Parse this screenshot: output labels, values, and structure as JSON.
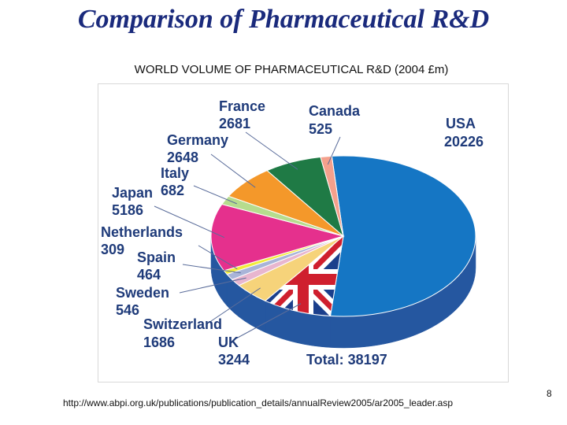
{
  "slide": {
    "title": "Comparison of Pharmaceutical R&D",
    "footer_url": "http://www.abpi.org.uk/publications/publication_details/annualReview2005/ar2005_leader.asp",
    "page_number": "8"
  },
  "chart_data": {
    "type": "pie",
    "title": "WORLD VOLUME OF PHARMACEUTICAL R&D (2004 £m)",
    "total_label": "Total: 38197",
    "total": 38197,
    "slices": [
      {
        "name": "USA",
        "value": 20226,
        "color": "#1576c4"
      },
      {
        "name": "UK",
        "value": 3244,
        "color": "#cf1f2e"
      },
      {
        "name": "Switzerland",
        "value": 1686,
        "color": "#f6d37a"
      },
      {
        "name": "Sweden",
        "value": 546,
        "color": "#e8b6cf"
      },
      {
        "name": "Spain",
        "value": 464,
        "color": "#a9b4d8"
      },
      {
        "name": "Netherlands",
        "value": 309,
        "color": "#f2ec3a"
      },
      {
        "name": "Japan",
        "value": 5186,
        "color": "#e5308d"
      },
      {
        "name": "Italy",
        "value": 682,
        "color": "#b6dc8e"
      },
      {
        "name": "Germany",
        "value": 2648,
        "color": "#f4982a"
      },
      {
        "name": "France",
        "value": 2681,
        "color": "#1f7a45"
      },
      {
        "name": "Canada",
        "value": 525,
        "color": "#f4a08c"
      }
    ]
  }
}
